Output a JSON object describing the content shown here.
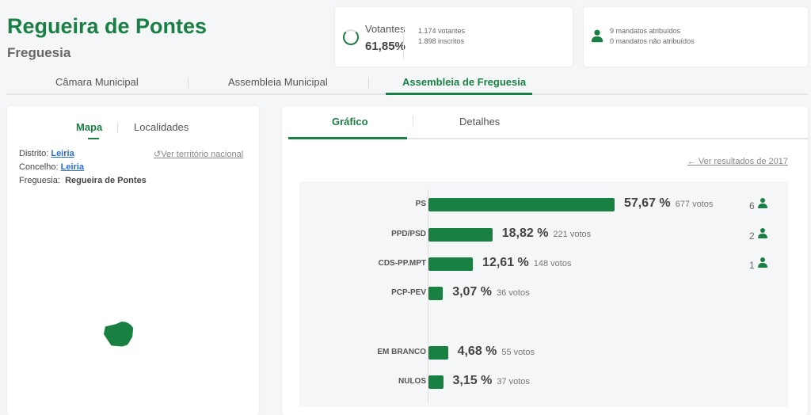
{
  "header": {
    "title": "Regueira de Pontes",
    "subtitle": "Freguesia"
  },
  "turnout": {
    "label": "Votantes",
    "percent": "61,85%",
    "voters": "1.174 votantes",
    "registered": "1.898 inscritos",
    "fraction": 0.6185
  },
  "mandates": {
    "assigned": "9 mandatos atribuídos",
    "unassigned": "0 mandatos não atribuídos"
  },
  "tabs": [
    {
      "label": "Câmara Municipal"
    },
    {
      "label": "Assembleia Municipal"
    },
    {
      "label": "Assembleia de Freguesia",
      "active": true
    }
  ],
  "left": {
    "tabs": [
      "Mapa",
      "Localidades"
    ],
    "distrito_label": "Distrito:",
    "distrito": "Leiria",
    "concelho_label": "Concelho:",
    "concelho": "Leiria",
    "freguesia_label": "Freguesia:",
    "freguesia": "Regueira de Pontes",
    "national_link": "Ver território nacional"
  },
  "right": {
    "tabs": [
      "Gráfico",
      "Detalhes"
    ],
    "previous_link": "Ver resultados de 2017"
  },
  "colors": {
    "accent": "#1a7f45",
    "bar": "#188040"
  },
  "chart_data": {
    "type": "bar",
    "orientation": "horizontal",
    "categories": [
      "PS",
      "PPD/PSD",
      "CDS-PP.MPT",
      "PCP-PEV",
      "EM BRANCO",
      "NULOS"
    ],
    "values": [
      57.67,
      18.82,
      12.61,
      3.07,
      4.68,
      3.15
    ],
    "pct_labels": [
      "57,67 %",
      "18,82 %",
      "12,61 %",
      "3,07 %",
      "4,68 %",
      "3,15 %"
    ],
    "votes": [
      "677 votos",
      "221 votos",
      "148 votos",
      "36 votos",
      "55 votos",
      "37 votos"
    ],
    "seats": [
      "6",
      "2",
      "1",
      null,
      null,
      null
    ]
  }
}
